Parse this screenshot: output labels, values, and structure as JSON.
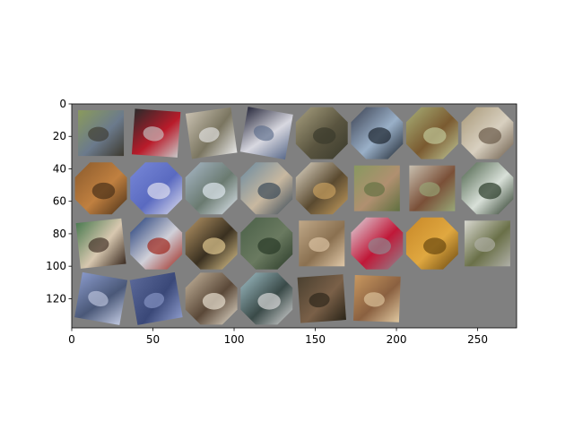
{
  "chart_data": {
    "type": "image-grid",
    "title": "",
    "xlabel": "",
    "ylabel": "",
    "xlim": [
      0,
      274
    ],
    "ylim": [
      138,
      0
    ],
    "xticks": [
      0,
      50,
      100,
      150,
      200,
      250
    ],
    "yticks": [
      0,
      20,
      40,
      60,
      80,
      100,
      120
    ],
    "grid": false,
    "background_color": "#808080",
    "grid_layout": {
      "columns": 8,
      "rows": 4,
      "tiles_shown": 30
    },
    "tiles": [
      {
        "name": "tile-1",
        "colors": [
          "#8a9a5c",
          "#6b7a8c",
          "#3e3a30"
        ],
        "shape": "rot",
        "angle": 0
      },
      {
        "name": "tile-2",
        "colors": [
          "#2a2a2a",
          "#b91b2a",
          "#c8c8c8"
        ],
        "shape": "rot",
        "angle": 4
      },
      {
        "name": "tile-3",
        "colors": [
          "#c8c0b0",
          "#7a7560",
          "#e6e6e6"
        ],
        "shape": "rot",
        "angle": -8
      },
      {
        "name": "tile-4",
        "colors": [
          "#2a2b3e",
          "#d8d8e0",
          "#5b6b8b"
        ],
        "shape": "rot",
        "angle": 10
      },
      {
        "name": "tile-5",
        "colors": [
          "#a8a080",
          "#5a5540",
          "#3a3a2c"
        ],
        "shape": "oct",
        "angle": 0
      },
      {
        "name": "tile-6",
        "colors": [
          "#3a4050",
          "#9ab0c8",
          "#1e2630"
        ],
        "shape": "oct",
        "angle": 0
      },
      {
        "name": "tile-7",
        "colors": [
          "#a8b078",
          "#7a5a30",
          "#c0c898"
        ],
        "shape": "oct",
        "angle": 0
      },
      {
        "name": "tile-8",
        "colors": [
          "#a89878",
          "#d8d0c0",
          "#6a5a48"
        ],
        "shape": "oct",
        "angle": 0
      },
      {
        "name": "tile-9",
        "colors": [
          "#8a5a2c",
          "#c08040",
          "#4a3018"
        ],
        "shape": "oct",
        "angle": 0
      },
      {
        "name": "tile-10",
        "colors": [
          "#7888d8",
          "#5a6ac0",
          "#e0e0f0"
        ],
        "shape": "oct",
        "angle": 0
      },
      {
        "name": "tile-11",
        "colors": [
          "#a8b8c8",
          "#6a7a70",
          "#e0e8f0"
        ],
        "shape": "oct",
        "angle": 0
      },
      {
        "name": "tile-12",
        "colors": [
          "#6a8aa0",
          "#c8b8a0",
          "#3a4a58"
        ],
        "shape": "oct",
        "angle": 0
      },
      {
        "name": "tile-13",
        "colors": [
          "#e0d8c8",
          "#5a4a30",
          "#c8a060"
        ],
        "shape": "oct",
        "angle": 0
      },
      {
        "name": "tile-14",
        "colors": [
          "#889860",
          "#b09070",
          "#607040"
        ],
        "shape": "rot",
        "angle": 0
      },
      {
        "name": "tile-15",
        "colors": [
          "#c8c0b0",
          "#7a5038",
          "#98a878"
        ],
        "shape": "rot",
        "angle": 0
      },
      {
        "name": "tile-16",
        "colors": [
          "#4a6048",
          "#d8e0d8",
          "#2a3a28"
        ],
        "shape": "oct",
        "angle": 0
      },
      {
        "name": "tile-17",
        "colors": [
          "#4a7a50",
          "#d8c8b0",
          "#3a2a20"
        ],
        "shape": "rot",
        "angle": -6
      },
      {
        "name": "tile-18",
        "colors": [
          "#1e3a78",
          "#d0d0d8",
          "#a0281e"
        ],
        "shape": "oct",
        "angle": 0
      },
      {
        "name": "tile-19",
        "colors": [
          "#b89868",
          "#3a3020",
          "#e0c890"
        ],
        "shape": "oct",
        "angle": 0
      },
      {
        "name": "tile-20",
        "colors": [
          "#4a6048",
          "#6a7a60",
          "#2a3a28"
        ],
        "shape": "oct",
        "angle": 0
      },
      {
        "name": "tile-21",
        "colors": [
          "#c0a888",
          "#8a7050",
          "#e0c8a8"
        ],
        "shape": "rot",
        "angle": 0
      },
      {
        "name": "tile-22",
        "colors": [
          "#e0d8e0",
          "#c01838",
          "#908890"
        ],
        "shape": "oct",
        "angle": 0
      },
      {
        "name": "tile-23",
        "colors": [
          "#c88828",
          "#e0a840",
          "#6a4810"
        ],
        "shape": "oct",
        "angle": 0
      },
      {
        "name": "tile-24",
        "colors": [
          "#d8d8d0",
          "#6a7048",
          "#b0b0a8"
        ],
        "shape": "rot",
        "angle": 0
      },
      {
        "name": "tile-25",
        "colors": [
          "#8898c8",
          "#4a5878",
          "#c0c8e0"
        ],
        "shape": "rot",
        "angle": 10
      },
      {
        "name": "tile-26",
        "colors": [
          "#5a6898",
          "#3a4878",
          "#8a98c8"
        ],
        "shape": "rot",
        "angle": -10
      },
      {
        "name": "tile-27",
        "colors": [
          "#c8b8a0",
          "#5a4838",
          "#e8e0d0"
        ],
        "shape": "oct",
        "angle": 0
      },
      {
        "name": "tile-28",
        "colors": [
          "#a0c0c8",
          "#3a4a48",
          "#d8d8d8"
        ],
        "shape": "oct",
        "angle": 0
      },
      {
        "name": "tile-29",
        "colors": [
          "#4a4030",
          "#7a6048",
          "#2a2418"
        ],
        "shape": "rot",
        "angle": -4
      },
      {
        "name": "tile-30",
        "colors": [
          "#c89860",
          "#8a6040",
          "#e0c8a0"
        ],
        "shape": "rot",
        "angle": 2
      }
    ]
  }
}
